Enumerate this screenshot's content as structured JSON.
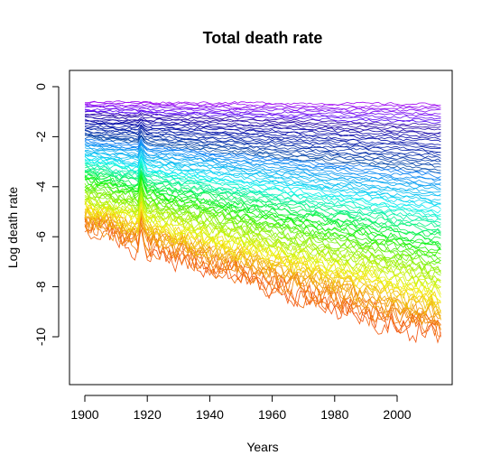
{
  "chart_data": {
    "type": "line",
    "title": "Total death rate",
    "xlabel": "Years",
    "ylabel": "Log death rate",
    "xlim": [
      1900,
      2014
    ],
    "ylim": [
      -11.5,
      0.2
    ],
    "x_ticks": [
      1900,
      1920,
      1940,
      1960,
      1980,
      2000
    ],
    "y_ticks": [
      0,
      -2,
      -4,
      -6,
      -8,
      -10
    ],
    "series_count": 101,
    "color_scale": "rainbow by age (orange = youngest, red/green/cyan/blue = middle, purple = oldest)",
    "series_summary": [
      {
        "age_group": "oldest",
        "color": "#9b1fd0",
        "values_1900_2014": [
          -0.6,
          -0.75
        ]
      },
      {
        "age_group": "upper",
        "color": "#1a1a9a",
        "values_1900_2014": [
          -1.6,
          -2.4
        ]
      },
      {
        "age_group": "middle",
        "color": "#2fd4e0",
        "values_1900_2014": [
          -3.6,
          -5.2
        ]
      },
      {
        "age_group": "lower-middle",
        "color": "#2cd33a",
        "values_1900_2014": [
          -4.8,
          -7.4
        ]
      },
      {
        "age_group": "youngest",
        "color": "#e8750a",
        "values_1900_2014": [
          -5.6,
          -9.8
        ]
      }
    ],
    "spike_year": 1918,
    "grid": false,
    "legend": "none"
  }
}
